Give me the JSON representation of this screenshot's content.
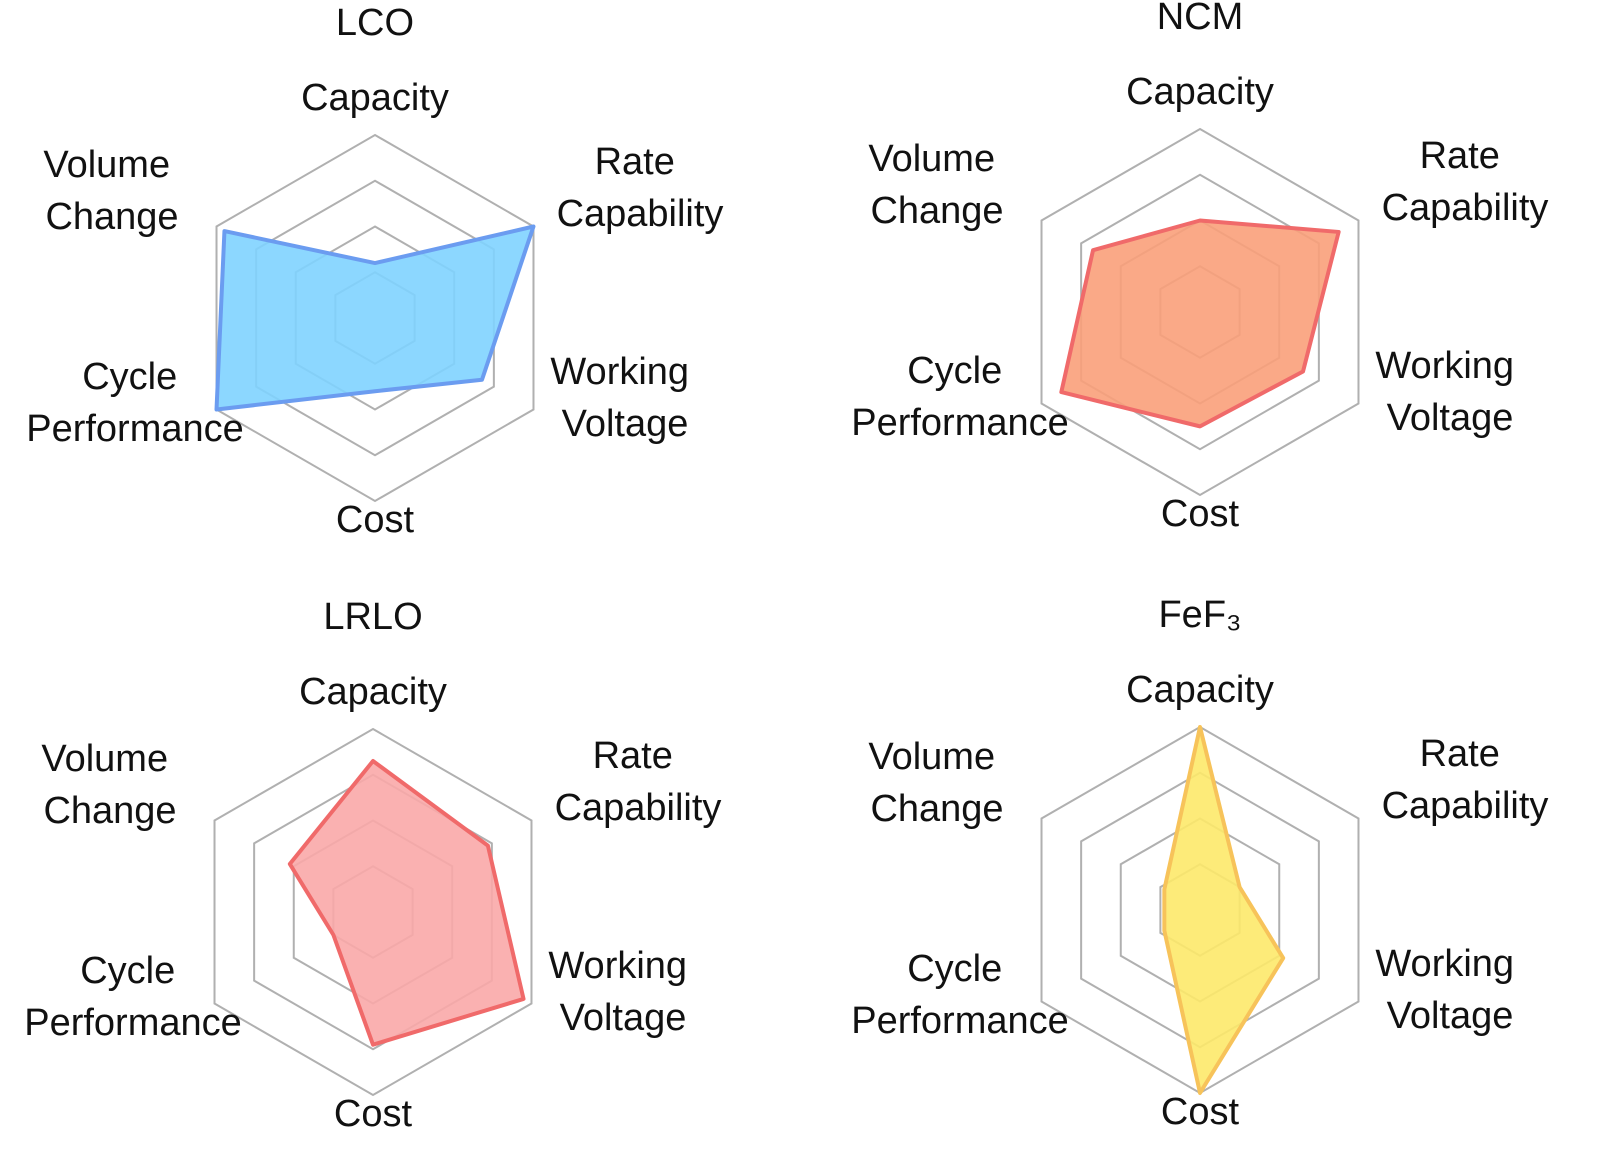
{
  "chart_data": [
    {
      "type": "radar",
      "title": "LCO",
      "categories": [
        "Capacity",
        "Rate Capability",
        "Working Voltage",
        "Cost",
        "Cycle Performance",
        "Volume Change"
      ],
      "values": [
        1.2,
        4,
        2.7,
        1.6,
        4,
        3.8
      ],
      "color": "#7fd3ff",
      "edge_color": "#6b9cf0",
      "ylim": [
        0,
        4
      ],
      "yticks": [
        1,
        2,
        3,
        4
      ],
      "grid": true
    },
    {
      "type": "radar",
      "title": "NCM",
      "categories": [
        "Capacity",
        "Rate Capability",
        "Working Voltage",
        "Cost",
        "Cycle Performance",
        "Volume Change"
      ],
      "values": [
        2,
        3.5,
        2.6,
        2.5,
        3.5,
        2.7
      ],
      "color": "#f9a07a",
      "edge_color": "#f06a6a",
      "ylim": [
        0,
        4
      ],
      "yticks": [
        1,
        2,
        3,
        4
      ],
      "grid": true
    },
    {
      "type": "radar",
      "title": "LRLO",
      "categories": [
        "Capacity",
        "Rate Capability",
        "Working Voltage",
        "Cost",
        "Cycle Performance",
        "Volume Change"
      ],
      "values": [
        3.3,
        2.9,
        3.8,
        2.9,
        1,
        2.1
      ],
      "color": "#f9a8a8",
      "edge_color": "#f06a6a",
      "ylim": [
        0,
        4
      ],
      "yticks": [
        1,
        2,
        3,
        4
      ],
      "grid": true
    },
    {
      "type": "radar",
      "title": "FeF₃",
      "categories": [
        "Capacity",
        "Rate Capability",
        "Working Voltage",
        "Cost",
        "Cycle Performance",
        "Volume Change"
      ],
      "values": [
        4,
        1,
        2.1,
        4,
        0.9,
        0.9
      ],
      "color": "#fde96a",
      "edge_color": "#f7c35a",
      "ylim": [
        0,
        4
      ],
      "yticks": [
        1,
        2,
        3,
        4
      ],
      "grid": true
    }
  ]
}
